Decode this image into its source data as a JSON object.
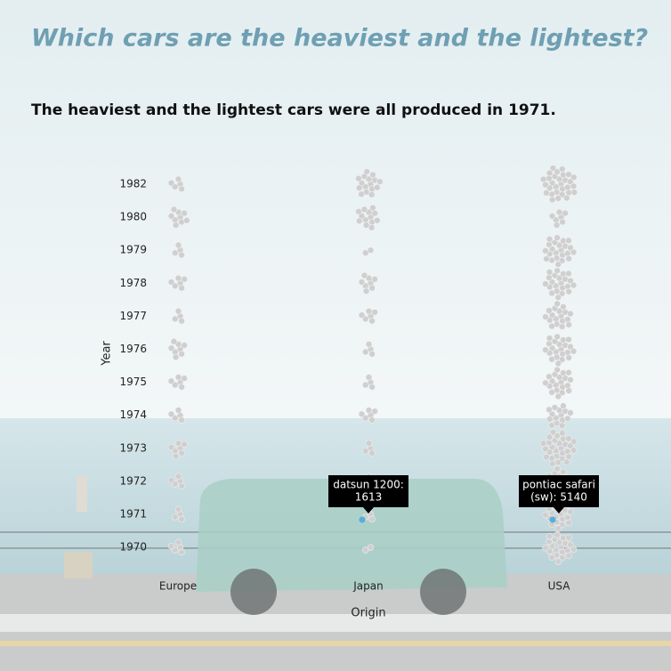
{
  "chart_data": {
    "type": "beeswarm",
    "title": "Which cars are the heaviest and the lightest?",
    "subtitle": "The heaviest and the lightest cars were all produced in 1971.",
    "x_label": "Origin",
    "y_label": "Year",
    "categories": [
      "Europe",
      "Japan",
      "USA"
    ],
    "y_categories": [
      "1982",
      "1980",
      "1979",
      "1978",
      "1977",
      "1976",
      "1975",
      "1974",
      "1973",
      "1972",
      "1971",
      "1970"
    ],
    "counts": [
      [
        5,
        9,
        4,
        6,
        4,
        8,
        6,
        5,
        7,
        5,
        4,
        5
      ],
      [
        16,
        13,
        2,
        8,
        6,
        4,
        4,
        6,
        4,
        5,
        4,
        2
      ],
      [
        30,
        7,
        23,
        22,
        18,
        22,
        20,
        15,
        29,
        18,
        20,
        22
      ]
    ],
    "dot_color": "#cfcfcf",
    "highlight_color": "#5aaedb",
    "annotations": [
      {
        "lines": [
          "datsun 1200:",
          "1613"
        ],
        "origin": 1,
        "year": 10
      },
      {
        "lines": [
          "pontiac safari",
          "(sw): 5140"
        ],
        "origin": 2,
        "year": 10
      }
    ]
  }
}
